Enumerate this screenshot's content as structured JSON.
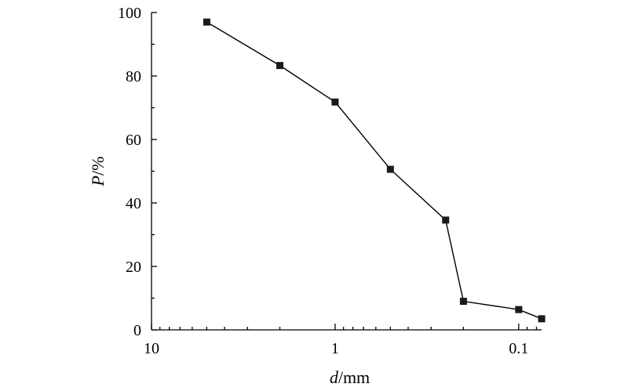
{
  "chart_data": {
    "type": "scatter",
    "title": "",
    "x_axis": {
      "label_var": "d",
      "label_unit": "/mm",
      "scale": "log",
      "reversed": true,
      "range": [
        10,
        0.075
      ],
      "ticks": [
        {
          "value": 10,
          "label": "10"
        },
        {
          "value": 1,
          "label": "1"
        },
        {
          "value": 0.1,
          "label": "0.1"
        }
      ]
    },
    "y_axis": {
      "label_var": "P",
      "label_unit": "/%",
      "range": [
        0,
        100
      ],
      "ticks": [
        {
          "value": 0,
          "label": "0"
        },
        {
          "value": 20,
          "label": "20"
        },
        {
          "value": 40,
          "label": "40"
        },
        {
          "value": 60,
          "label": "60"
        },
        {
          "value": 80,
          "label": "80"
        },
        {
          "value": 100,
          "label": "100"
        }
      ]
    },
    "grid": false,
    "marker": "square",
    "connected": true,
    "series": [
      {
        "points": [
          {
            "x": 5,
            "y": 97
          },
          {
            "x": 2,
            "y": 83.3
          },
          {
            "x": 1,
            "y": 71.8
          },
          {
            "x": 0.5,
            "y": 50.6
          },
          {
            "x": 0.25,
            "y": 34.6
          },
          {
            "x": 0.2,
            "y": 9
          },
          {
            "x": 0.1,
            "y": 6.4
          },
          {
            "x": 0.075,
            "y": 3.5
          }
        ]
      }
    ]
  }
}
